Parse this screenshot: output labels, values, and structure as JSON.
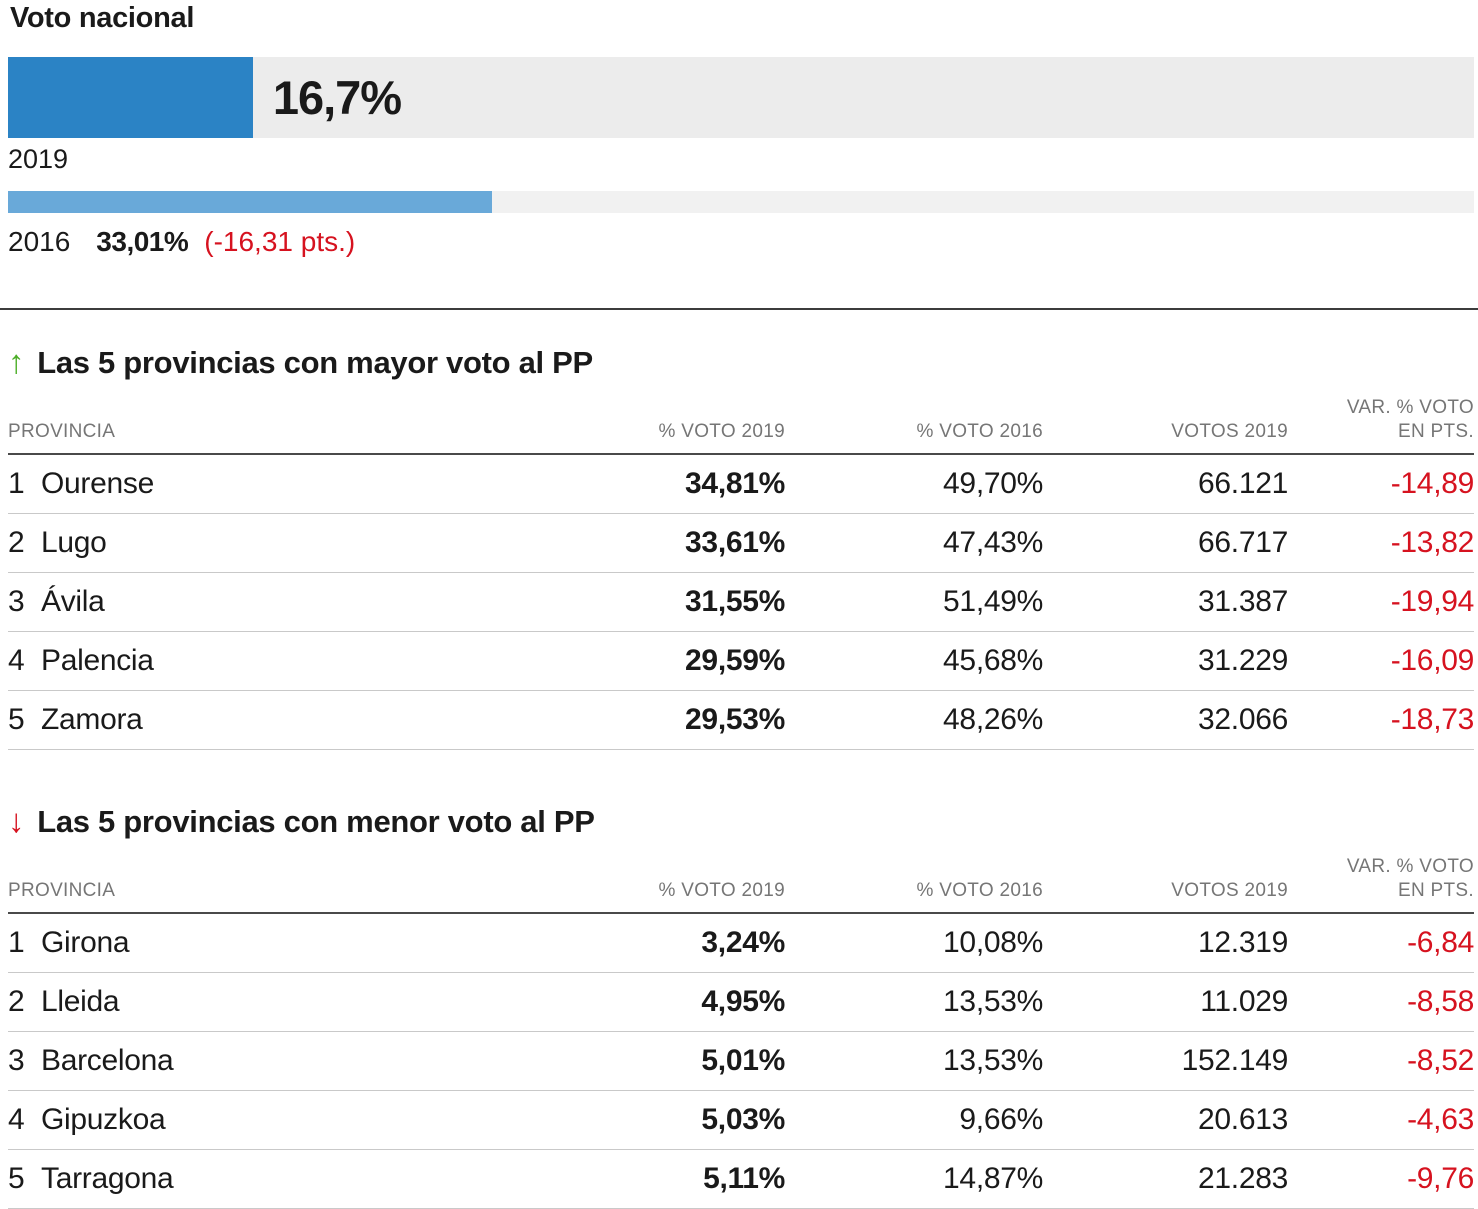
{
  "accent_colors": {
    "bar_2019_blue": "#2b83c5",
    "bar_2016_blue": "#69a9d9",
    "bar_track_gray": "#ececec",
    "negative_red": "#d6121f",
    "up_green": "#4cae27",
    "header_gray": "#767676"
  },
  "national": {
    "title": "Voto nacional",
    "bar_2019": {
      "year": "2019",
      "value_label": "16,7%",
      "pct": 16.7
    },
    "bar_2016": {
      "year": "2016",
      "value_label": "33,01%",
      "diff_label": "(-16,31 pts.)",
      "pct": 33.01
    }
  },
  "tables": [
    {
      "arrow_glyph": "↑",
      "title": "Las 5 provincias con mayor voto al PP",
      "headers": {
        "provincia": "PROVINCIA",
        "voto2019": "% VOTO 2019",
        "voto2016": "% VOTO 2016",
        "votos2019": "VOTOS 2019",
        "var_line1": "VAR. % VOTO",
        "var_line2": "EN PTS."
      },
      "rows": [
        {
          "rank": "1",
          "province": "Ourense",
          "pct_2019": "34,81%",
          "pct_2016": "49,70%",
          "votes_2019": "66.121",
          "var_pts": "-14,89"
        },
        {
          "rank": "2",
          "province": "Lugo",
          "pct_2019": "33,61%",
          "pct_2016": "47,43%",
          "votes_2019": "66.717",
          "var_pts": "-13,82"
        },
        {
          "rank": "3",
          "province": "Ávila",
          "pct_2019": "31,55%",
          "pct_2016": "51,49%",
          "votes_2019": "31.387",
          "var_pts": "-19,94"
        },
        {
          "rank": "4",
          "province": "Palencia",
          "pct_2019": "29,59%",
          "pct_2016": "45,68%",
          "votes_2019": "31.229",
          "var_pts": "-16,09"
        },
        {
          "rank": "5",
          "province": "Zamora",
          "pct_2019": "29,53%",
          "pct_2016": "48,26%",
          "votes_2019": "32.066",
          "var_pts": "-18,73"
        }
      ]
    },
    {
      "arrow_glyph": "↓",
      "title": "Las 5 provincias con menor voto al PP",
      "headers": {
        "provincia": "PROVINCIA",
        "voto2019": "% VOTO 2019",
        "voto2016": "% VOTO 2016",
        "votos2019": "VOTOS 2019",
        "var_line1": "VAR. % VOTO",
        "var_line2": "EN PTS."
      },
      "rows": [
        {
          "rank": "1",
          "province": "Girona",
          "pct_2019": "3,24%",
          "pct_2016": "10,08%",
          "votes_2019": "12.319",
          "var_pts": "-6,84"
        },
        {
          "rank": "2",
          "province": "Lleida",
          "pct_2019": "4,95%",
          "pct_2016": "13,53%",
          "votes_2019": "11.029",
          "var_pts": "-8,58"
        },
        {
          "rank": "3",
          "province": "Barcelona",
          "pct_2019": "5,01%",
          "pct_2016": "13,53%",
          "votes_2019": "152.149",
          "var_pts": "-8,52"
        },
        {
          "rank": "4",
          "province": "Gipuzkoa",
          "pct_2019": "5,03%",
          "pct_2016": "9,66%",
          "votes_2019": "20.613",
          "var_pts": "-4,63"
        },
        {
          "rank": "5",
          "province": "Tarragona",
          "pct_2019": "5,11%",
          "pct_2016": "14,87%",
          "votes_2019": "21.283",
          "var_pts": "-9,76"
        }
      ]
    }
  ],
  "chart_data": [
    {
      "type": "bar",
      "title": "Voto nacional",
      "orientation": "horizontal",
      "categories": [
        "2019",
        "2016"
      ],
      "values": [
        16.7,
        33.01
      ],
      "value_labels": [
        "16,7%",
        "33,01%"
      ],
      "annotations": [
        "(-16,31 pts.)"
      ],
      "xlabel": "",
      "ylabel": "",
      "xlim": [
        0,
        100
      ],
      "grid": false,
      "legend": "none",
      "colors": [
        "#2b83c5",
        "#69a9d9"
      ]
    },
    {
      "type": "table",
      "title": "Las 5 provincias con mayor voto al PP",
      "columns": [
        "PROVINCIA",
        "% VOTO 2019",
        "% VOTO 2016",
        "VOTOS 2019",
        "VAR. % VOTO EN PTS."
      ],
      "rows": [
        [
          "1 Ourense",
          "34,81%",
          "49,70%",
          "66.121",
          "-14,89"
        ],
        [
          "2 Lugo",
          "33,61%",
          "47,43%",
          "66.717",
          "-13,82"
        ],
        [
          "3 Ávila",
          "31,55%",
          "51,49%",
          "31.387",
          "-19,94"
        ],
        [
          "4 Palencia",
          "29,59%",
          "45,68%",
          "31.229",
          "-16,09"
        ],
        [
          "5 Zamora",
          "29,53%",
          "48,26%",
          "32.066",
          "-18,73"
        ]
      ]
    },
    {
      "type": "table",
      "title": "Las 5 provincias con menor voto al PP",
      "columns": [
        "PROVINCIA",
        "% VOTO 2019",
        "% VOTO 2016",
        "VOTOS 2019",
        "VAR. % VOTO EN PTS."
      ],
      "rows": [
        [
          "1 Girona",
          "3,24%",
          "10,08%",
          "12.319",
          "-6,84"
        ],
        [
          "2 Lleida",
          "4,95%",
          "13,53%",
          "11.029",
          "-8,58"
        ],
        [
          "3 Barcelona",
          "5,01%",
          "13,53%",
          "152.149",
          "-8,52"
        ],
        [
          "4 Gipuzkoa",
          "5,03%",
          "9,66%",
          "20.613",
          "-4,63"
        ],
        [
          "5 Tarragona",
          "5,11%",
          "14,87%",
          "21.283",
          "-9,76"
        ]
      ]
    }
  ]
}
